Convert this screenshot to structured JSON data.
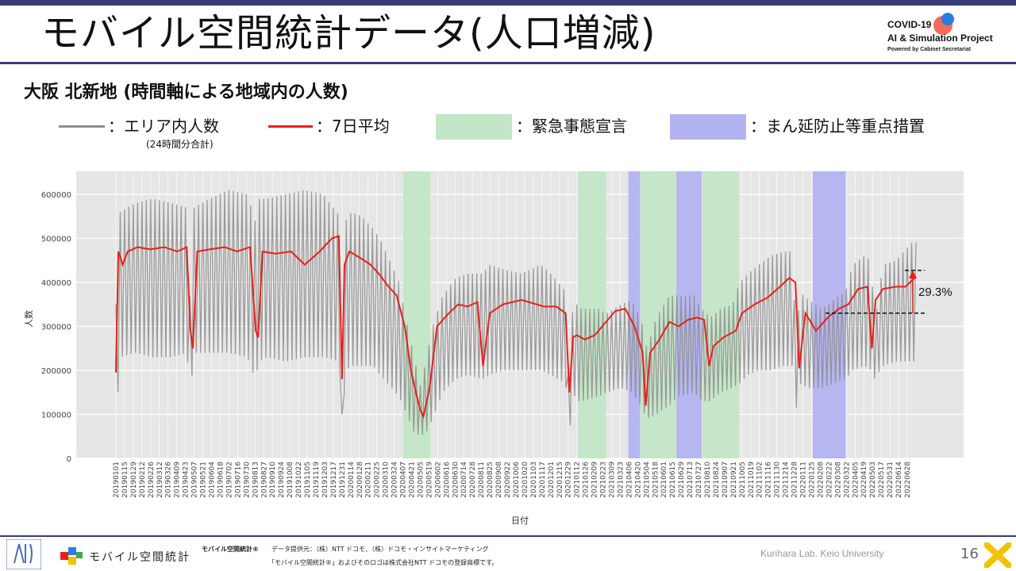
{
  "header": {
    "title": "モバイル空間統計データ(人口増減)",
    "logo_line1": "COVID-19",
    "logo_line2": "AI & Simulation Project",
    "logo_line3": "Powered by Cabinet Secretariat"
  },
  "subtitle": "大阪 北新地 (時間軸による地域内の人数)",
  "legend": {
    "gray_label": "：エリア内人数",
    "gray_note": "(24時間分合計)",
    "red_label": "：7日平均",
    "green_label": "：緊急事態宣言",
    "blue_label": "：まん延防止等重点措置",
    "colors": {
      "gray": "#8c8c8c",
      "red": "#e8201c",
      "green": "#c3e6c6",
      "blue": "#b3b3f1"
    }
  },
  "chart_data": {
    "type": "line",
    "xlabel": "日付",
    "ylabel": "人数",
    "ylim": [
      0,
      650000
    ],
    "yticks": [
      0,
      100000,
      200000,
      300000,
      400000,
      500000,
      600000
    ],
    "ytick_labels": [
      "0",
      "100000",
      "200000",
      "300000",
      "400000",
      "500000",
      "600000"
    ],
    "x_range": [
      "2019-01-01",
      "2022-07-12"
    ],
    "xtick_dates": [
      "20190101",
      "20190115",
      "20190129",
      "20190212",
      "20190226",
      "20190312",
      "20190326",
      "20190409",
      "20190423",
      "20190507",
      "20190521",
      "20190604",
      "20190618",
      "20190702",
      "20190716",
      "20190730",
      "20190813",
      "20190827",
      "20190910",
      "20190924",
      "20191008",
      "20191022",
      "20191105",
      "20191119",
      "20191203",
      "20191217",
      "20191231",
      "20200114",
      "20200128",
      "20200211",
      "20200225",
      "20200310",
      "20200324",
      "20200407",
      "20200421",
      "20200505",
      "20200519",
      "20200602",
      "20200616",
      "20200630",
      "20200714",
      "20200728",
      "20200811",
      "20200825",
      "20200908",
      "20200922",
      "20201006",
      "20201020",
      "20201103",
      "20201117",
      "20201201",
      "20201215",
      "20201229",
      "20210112",
      "20210126",
      "20210209",
      "20210223",
      "20210309",
      "20210323",
      "20210406",
      "20210420",
      "20210504",
      "20210518",
      "20210601",
      "20210615",
      "20210629",
      "20210713",
      "20210727",
      "20210810",
      "20210824",
      "20210907",
      "20210921",
      "20211005",
      "20211019",
      "20211102",
      "20211116",
      "20211130",
      "20211214",
      "20211228",
      "20220111",
      "20220125",
      "20220208",
      "20220222",
      "20220308",
      "20220322",
      "20220405",
      "20220419",
      "20220503",
      "20220517",
      "20220531",
      "20220614",
      "20220628"
    ],
    "emergency_periods": [
      [
        "2020-04-07",
        "2020-05-21"
      ],
      [
        "2021-01-14",
        "2021-02-28"
      ],
      [
        "2021-04-25",
        "2021-06-20"
      ],
      [
        "2021-08-02",
        "2021-09-30"
      ]
    ],
    "priority_periods": [
      [
        "2021-04-05",
        "2021-04-24"
      ],
      [
        "2021-06-21",
        "2021-08-01"
      ],
      [
        "2022-01-27",
        "2022-03-21"
      ]
    ],
    "series": [
      {
        "name": "エリア内人数",
        "color": "#8c8c8c",
        "envelope": {
          "dates": [
            "2019-01-01",
            "2019-01-08",
            "2019-02-01",
            "2019-03-01",
            "2019-04-01",
            "2019-04-25",
            "2019-05-01",
            "2019-05-07",
            "2019-06-01",
            "2019-07-01",
            "2019-08-01",
            "2019-08-13",
            "2019-08-20",
            "2019-09-01",
            "2019-10-01",
            "2019-11-01",
            "2019-12-01",
            "2019-12-27",
            "2019-12-31",
            "2020-01-06",
            "2020-01-15",
            "2020-02-01",
            "2020-02-20",
            "2020-03-01",
            "2020-03-20",
            "2020-04-01",
            "2020-04-10",
            "2020-04-25",
            "2020-05-06",
            "2020-05-15",
            "2020-05-25",
            "2020-06-10",
            "2020-07-01",
            "2020-07-20",
            "2020-08-13",
            "2020-08-25",
            "2020-09-15",
            "2020-10-15",
            "2020-11-15",
            "2020-12-01",
            "2020-12-25",
            "2020-12-31",
            "2021-01-06",
            "2021-01-12",
            "2021-01-20",
            "2021-02-15",
            "2021-03-01",
            "2021-03-25",
            "2021-04-10",
            "2021-04-25",
            "2021-05-05",
            "2021-05-20",
            "2021-06-10",
            "2021-06-25",
            "2021-07-20",
            "2021-08-01",
            "2021-08-15",
            "2021-09-01",
            "2021-09-20",
            "2021-10-01",
            "2021-10-15",
            "2021-11-01",
            "2021-11-20",
            "2021-12-10",
            "2021-12-25",
            "2021-12-31",
            "2022-01-06",
            "2022-01-20",
            "2022-02-10",
            "2022-03-01",
            "2022-03-21",
            "2022-04-01",
            "2022-04-20",
            "2022-05-01",
            "2022-05-06",
            "2022-05-20",
            "2022-06-10",
            "2022-07-05"
          ],
          "high": [
            350000,
            560000,
            580000,
            590000,
            580000,
            570000,
            330000,
            570000,
            590000,
            610000,
            600000,
            540000,
            590000,
            590000,
            600000,
            610000,
            600000,
            550000,
            100000,
            540000,
            560000,
            550000,
            520000,
            500000,
            440000,
            400000,
            330000,
            230000,
            160000,
            230000,
            300000,
            370000,
            410000,
            420000,
            420000,
            440000,
            430000,
            420000,
            440000,
            420000,
            380000,
            90000,
            380000,
            350000,
            340000,
            340000,
            330000,
            350000,
            360000,
            320000,
            250000,
            320000,
            370000,
            370000,
            370000,
            340000,
            320000,
            340000,
            350000,
            400000,
            420000,
            440000,
            460000,
            470000,
            470000,
            250000,
            380000,
            360000,
            340000,
            360000,
            380000,
            440000,
            460000,
            450000,
            300000,
            440000,
            450000,
            490000
          ],
          "low": [
            70000,
            230000,
            240000,
            230000,
            230000,
            240000,
            150000,
            240000,
            240000,
            240000,
            230000,
            180000,
            220000,
            230000,
            220000,
            230000,
            230000,
            220000,
            70000,
            200000,
            210000,
            210000,
            210000,
            190000,
            160000,
            140000,
            110000,
            60000,
            50000,
            60000,
            90000,
            150000,
            180000,
            190000,
            180000,
            190000,
            200000,
            200000,
            200000,
            190000,
            170000,
            50000,
            150000,
            130000,
            130000,
            140000,
            150000,
            160000,
            150000,
            120000,
            90000,
            100000,
            120000,
            140000,
            150000,
            130000,
            130000,
            150000,
            160000,
            170000,
            190000,
            200000,
            200000,
            210000,
            210000,
            110000,
            170000,
            160000,
            160000,
            170000,
            180000,
            200000,
            210000,
            200000,
            180000,
            210000,
            220000,
            220000
          ]
        }
      },
      {
        "name": "7日平均",
        "color": "#e8201c",
        "dates": [
          "2019-01-01",
          "2019-01-05",
          "2019-01-12",
          "2019-01-20",
          "2019-02-05",
          "2019-02-25",
          "2019-03-20",
          "2019-04-10",
          "2019-04-25",
          "2019-05-01",
          "2019-05-05",
          "2019-05-12",
          "2019-06-01",
          "2019-06-25",
          "2019-07-15",
          "2019-08-05",
          "2019-08-14",
          "2019-08-18",
          "2019-08-25",
          "2019-09-15",
          "2019-10-10",
          "2019-11-01",
          "2019-11-25",
          "2019-12-15",
          "2019-12-26",
          "2019-12-31",
          "2020-01-04",
          "2020-01-12",
          "2020-01-30",
          "2020-02-15",
          "2020-02-28",
          "2020-03-15",
          "2020-03-28",
          "2020-04-10",
          "2020-04-20",
          "2020-04-28",
          "2020-05-05",
          "2020-05-10",
          "2020-05-20",
          "2020-06-01",
          "2020-06-20",
          "2020-07-05",
          "2020-07-20",
          "2020-08-05",
          "2020-08-14",
          "2020-08-25",
          "2020-09-15",
          "2020-10-15",
          "2020-11-20",
          "2020-12-10",
          "2020-12-25",
          "2020-12-31",
          "2021-01-06",
          "2021-01-12",
          "2021-01-25",
          "2021-02-10",
          "2021-02-28",
          "2021-03-15",
          "2021-03-31",
          "2021-04-15",
          "2021-04-28",
          "2021-05-03",
          "2021-05-10",
          "2021-05-25",
          "2021-06-10",
          "2021-06-25",
          "2021-07-10",
          "2021-07-25",
          "2021-08-05",
          "2021-08-13",
          "2021-08-20",
          "2021-09-05",
          "2021-09-25",
          "2021-10-05",
          "2021-10-25",
          "2021-11-15",
          "2021-12-05",
          "2021-12-20",
          "2021-12-30",
          "2022-01-05",
          "2022-01-15",
          "2022-02-01",
          "2022-02-20",
          "2022-03-10",
          "2022-03-25",
          "2022-04-10",
          "2022-04-25",
          "2022-05-02",
          "2022-05-08",
          "2022-05-20",
          "2022-06-10",
          "2022-06-25",
          "2022-07-10"
        ],
        "values": [
          195000,
          470000,
          440000,
          470000,
          480000,
          475000,
          480000,
          470000,
          480000,
          290000,
          250000,
          470000,
          475000,
          480000,
          470000,
          480000,
          290000,
          275000,
          470000,
          465000,
          470000,
          440000,
          470000,
          500000,
          505000,
          180000,
          440000,
          470000,
          455000,
          440000,
          420000,
          390000,
          370000,
          300000,
          200000,
          150000,
          110000,
          95000,
          160000,
          300000,
          330000,
          350000,
          345000,
          355000,
          210000,
          330000,
          350000,
          360000,
          345000,
          345000,
          330000,
          150000,
          275000,
          280000,
          270000,
          280000,
          310000,
          335000,
          340000,
          300000,
          240000,
          120000,
          240000,
          270000,
          310000,
          300000,
          315000,
          320000,
          315000,
          210000,
          255000,
          275000,
          290000,
          330000,
          350000,
          365000,
          390000,
          410000,
          400000,
          205000,
          330000,
          290000,
          320000,
          340000,
          350000,
          385000,
          390000,
          250000,
          360000,
          385000,
          390000,
          390000,
          410000
        ]
      }
    ],
    "annotation": {
      "label": "29.3%",
      "from_value": 330000,
      "to_value": 427000
    }
  },
  "footer": {
    "brand": "モバイル空間統計",
    "product": "モバイル空間統計®",
    "source": "データ提供元：（株）NTT ドコモ、（株）ドコモ・インサイトマーケティング",
    "trademark": "「モバイル空間統計®」およびそのロゴは株式会社NTT ドコモの登録商標です。",
    "credit": "Kurihara Lab. Keio University",
    "page": "16"
  }
}
